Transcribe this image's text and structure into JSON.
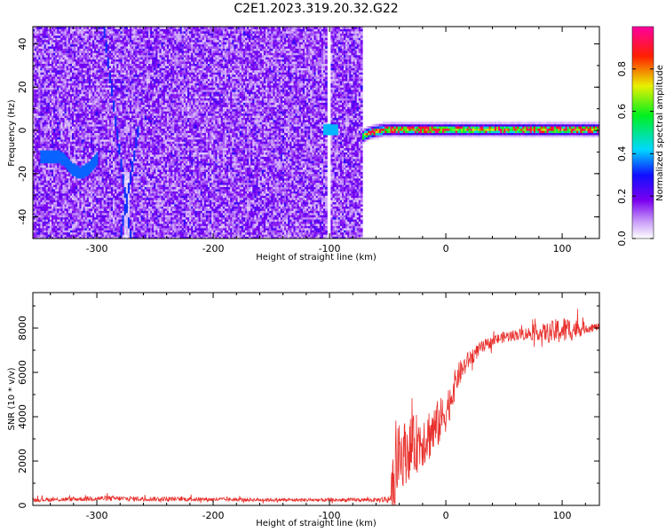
{
  "title": "C2E1.2023.319.20.32.G22",
  "colors": {
    "snr_line": "#e8302c",
    "axis": "#000000",
    "background": "#ffffff"
  },
  "chart_data": [
    {
      "type": "heatmap",
      "title": "C2E1.2023.319.20.32.G22",
      "xlabel": "Height of straight line (km)",
      "ylabel": "Frequency (Hz)",
      "xlim": [
        -355,
        132
      ],
      "ylim": [
        -50,
        48
      ],
      "x_ticks": [
        -300,
        -200,
        -100,
        0,
        100
      ],
      "y_ticks": [
        -40,
        -20,
        0,
        20,
        40
      ],
      "colorbar": {
        "label": "Normalized spectral amplitude",
        "range": [
          0,
          1
        ],
        "ticks": [
          "0.0",
          "0.2",
          "0.4",
          "0.6",
          "0.8"
        ],
        "colormap": "rainbow (white → purple → blue → cyan → green → yellow → red → magenta)"
      },
      "features": {
        "noise_region_x": [
          -355,
          -72
        ],
        "signal_band_x": [
          -72,
          132
        ],
        "signal_band_freq": 0
      }
    },
    {
      "type": "line",
      "xlabel": "Height of straight line (km)",
      "ylabel": "SNR (10 * v/v)",
      "xlim": [
        -355,
        132
      ],
      "ylim": [
        0,
        9600
      ],
      "x_ticks": [
        -300,
        -200,
        -100,
        0,
        100
      ],
      "y_ticks": [
        0,
        2000,
        4000,
        6000,
        8000
      ],
      "envelope": {
        "x": [
          -355,
          -320,
          -300,
          -270,
          -240,
          -200,
          -150,
          -100,
          -75,
          -60,
          -48,
          -44,
          -40,
          -30,
          -20,
          -10,
          0,
          10,
          20,
          30,
          40,
          50,
          60,
          70,
          80,
          90,
          100,
          110,
          120,
          132
        ],
        "base": [
          250,
          280,
          320,
          300,
          290,
          270,
          250,
          240,
          250,
          250,
          280,
          1500,
          2200,
          2600,
          3000,
          3400,
          4200,
          5800,
          6600,
          7100,
          7400,
          7600,
          7700,
          7750,
          7800,
          7800,
          7900,
          7950,
          8000,
          8050
        ],
        "amp": [
          90,
          100,
          120,
          110,
          100,
          90,
          80,
          80,
          90,
          90,
          200,
          1800,
          1500,
          1400,
          1300,
          1200,
          900,
          600,
          400,
          300,
          250,
          250,
          250,
          300,
          350,
          500,
          650,
          500,
          250,
          150
        ]
      }
    }
  ]
}
